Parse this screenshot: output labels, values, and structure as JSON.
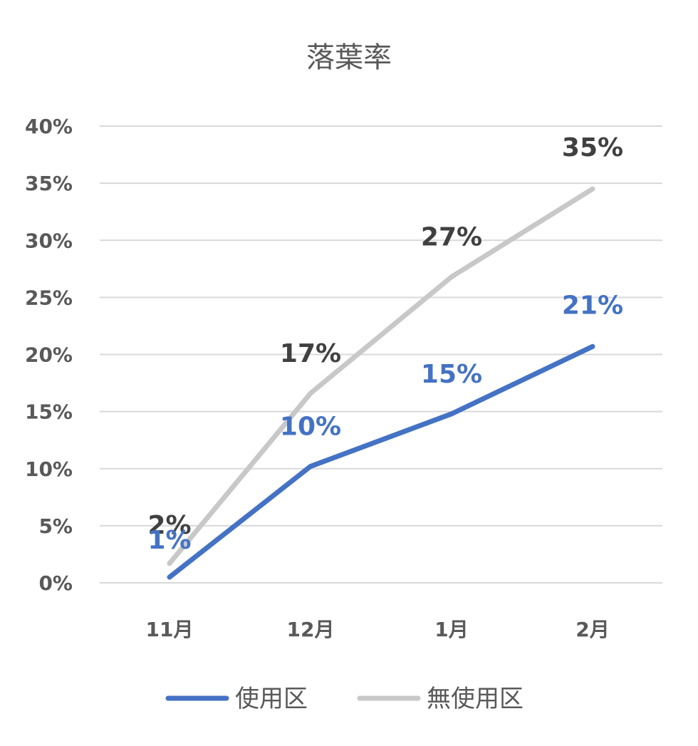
{
  "chart_data": {
    "type": "line",
    "title": "落葉率",
    "xlabel": "",
    "ylabel": "",
    "categories": [
      "11月",
      "12月",
      "1月",
      "2月"
    ],
    "y_ticks": [
      "0%",
      "5%",
      "10%",
      "15%",
      "20%",
      "25%",
      "30%",
      "35%",
      "40%"
    ],
    "ylim": [
      0,
      0.4
    ],
    "grid": true,
    "legend_position": "bottom",
    "series": [
      {
        "name": "使用区",
        "color": "#4472C4",
        "values": [
          0.005,
          0.102,
          0.148,
          0.207
        ],
        "labels": [
          "1%",
          "10%",
          "15%",
          "21%"
        ]
      },
      {
        "name": "無使用区",
        "color": "#C8C8C8",
        "label_color": "#404040",
        "values": [
          0.017,
          0.166,
          0.268,
          0.345
        ],
        "labels": [
          "2%",
          "17%",
          "27%",
          "35%"
        ]
      }
    ]
  }
}
